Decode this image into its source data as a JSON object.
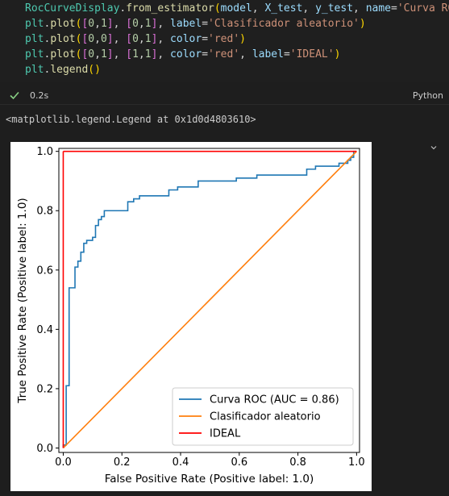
{
  "code": {
    "lines": [
      [
        {
          "t": "RocCurveDisplay",
          "c": "#4ec9b0"
        },
        {
          "t": ".",
          "c": "#d4d4d4"
        },
        {
          "t": "from_estimator",
          "c": "#dcdcaa"
        },
        {
          "t": "(",
          "c": "#ffd700"
        },
        {
          "t": "model",
          "c": "#9cdcfe"
        },
        {
          "t": ", ",
          "c": "#d4d4d4"
        },
        {
          "t": "X_test",
          "c": "#9cdcfe"
        },
        {
          "t": ", ",
          "c": "#d4d4d4"
        },
        {
          "t": "y_test",
          "c": "#9cdcfe"
        },
        {
          "t": ", ",
          "c": "#d4d4d4"
        },
        {
          "t": "name",
          "c": "#9cdcfe"
        },
        {
          "t": "=",
          "c": "#d4d4d4"
        },
        {
          "t": "'Curva ROC'",
          "c": "#ce9178"
        }
      ],
      [
        {
          "t": "plt",
          "c": "#4ec9b0"
        },
        {
          "t": ".",
          "c": "#d4d4d4"
        },
        {
          "t": "plot",
          "c": "#dcdcaa"
        },
        {
          "t": "(",
          "c": "#ffd700"
        },
        {
          "t": "[",
          "c": "#da70d6"
        },
        {
          "t": "0",
          "c": "#b5cea8"
        },
        {
          "t": ",",
          "c": "#d4d4d4"
        },
        {
          "t": "1",
          "c": "#b5cea8"
        },
        {
          "t": "]",
          "c": "#da70d6"
        },
        {
          "t": ", ",
          "c": "#d4d4d4"
        },
        {
          "t": "[",
          "c": "#da70d6"
        },
        {
          "t": "0",
          "c": "#b5cea8"
        },
        {
          "t": ",",
          "c": "#d4d4d4"
        },
        {
          "t": "1",
          "c": "#b5cea8"
        },
        {
          "t": "]",
          "c": "#da70d6"
        },
        {
          "t": ", ",
          "c": "#d4d4d4"
        },
        {
          "t": "label",
          "c": "#9cdcfe"
        },
        {
          "t": "=",
          "c": "#d4d4d4"
        },
        {
          "t": "'Clasificador aleatorio'",
          "c": "#ce9178"
        },
        {
          "t": ")",
          "c": "#ffd700"
        }
      ],
      [
        {
          "t": "plt",
          "c": "#4ec9b0"
        },
        {
          "t": ".",
          "c": "#d4d4d4"
        },
        {
          "t": "plot",
          "c": "#dcdcaa"
        },
        {
          "t": "(",
          "c": "#ffd700"
        },
        {
          "t": "[",
          "c": "#da70d6"
        },
        {
          "t": "0",
          "c": "#b5cea8"
        },
        {
          "t": ",",
          "c": "#d4d4d4"
        },
        {
          "t": "0",
          "c": "#b5cea8"
        },
        {
          "t": "]",
          "c": "#da70d6"
        },
        {
          "t": ", ",
          "c": "#d4d4d4"
        },
        {
          "t": "[",
          "c": "#da70d6"
        },
        {
          "t": "0",
          "c": "#b5cea8"
        },
        {
          "t": ",",
          "c": "#d4d4d4"
        },
        {
          "t": "1",
          "c": "#b5cea8"
        },
        {
          "t": "]",
          "c": "#da70d6"
        },
        {
          "t": ", ",
          "c": "#d4d4d4"
        },
        {
          "t": "color",
          "c": "#9cdcfe"
        },
        {
          "t": "=",
          "c": "#d4d4d4"
        },
        {
          "t": "'red'",
          "c": "#ce9178"
        },
        {
          "t": ")",
          "c": "#ffd700"
        }
      ],
      [
        {
          "t": "plt",
          "c": "#4ec9b0"
        },
        {
          "t": ".",
          "c": "#d4d4d4"
        },
        {
          "t": "plot",
          "c": "#dcdcaa"
        },
        {
          "t": "(",
          "c": "#ffd700"
        },
        {
          "t": "[",
          "c": "#da70d6"
        },
        {
          "t": "0",
          "c": "#b5cea8"
        },
        {
          "t": ",",
          "c": "#d4d4d4"
        },
        {
          "t": "1",
          "c": "#b5cea8"
        },
        {
          "t": "]",
          "c": "#da70d6"
        },
        {
          "t": ", ",
          "c": "#d4d4d4"
        },
        {
          "t": "[",
          "c": "#da70d6"
        },
        {
          "t": "1",
          "c": "#b5cea8"
        },
        {
          "t": ",",
          "c": "#d4d4d4"
        },
        {
          "t": "1",
          "c": "#b5cea8"
        },
        {
          "t": "]",
          "c": "#da70d6"
        },
        {
          "t": ", ",
          "c": "#d4d4d4"
        },
        {
          "t": "color",
          "c": "#9cdcfe"
        },
        {
          "t": "=",
          "c": "#d4d4d4"
        },
        {
          "t": "'red'",
          "c": "#ce9178"
        },
        {
          "t": ", ",
          "c": "#d4d4d4"
        },
        {
          "t": "label",
          "c": "#9cdcfe"
        },
        {
          "t": "=",
          "c": "#d4d4d4"
        },
        {
          "t": "'IDEAL'",
          "c": "#ce9178"
        },
        {
          "t": ")",
          "c": "#ffd700"
        }
      ],
      [
        {
          "t": "plt",
          "c": "#4ec9b0"
        },
        {
          "t": ".",
          "c": "#d4d4d4"
        },
        {
          "t": "legend",
          "c": "#dcdcaa"
        },
        {
          "t": "()",
          "c": "#ffd700"
        }
      ]
    ]
  },
  "cell_status": {
    "check_icon": "check-icon",
    "duration": "0.2s",
    "language": "Python",
    "success_color": "#89d185"
  },
  "output": {
    "text": "<matplotlib.legend.Legend at 0x1d0d4803610>",
    "collapse_icon": "chevron-icon"
  },
  "chart_data": {
    "type": "line",
    "title": "",
    "xlabel": "False Positive Rate (Positive label: 1.0)",
    "ylabel": "True Positive Rate (Positive label: 1.0)",
    "xlim": [
      -0.015,
      1.01
    ],
    "ylim": [
      -0.015,
      1.01
    ],
    "x_ticks": [
      0.0,
      0.2,
      0.4,
      0.6,
      0.8,
      1.0
    ],
    "x_tick_labels": [
      "0.0",
      "0.2",
      "0.4",
      "0.6",
      "0.8",
      "1.0"
    ],
    "y_ticks": [
      0.0,
      0.2,
      0.4,
      0.6,
      0.8,
      1.0
    ],
    "y_tick_labels": [
      "0.0",
      "0.2",
      "0.4",
      "0.6",
      "0.8",
      "1.0"
    ],
    "grid": false,
    "legend_position": "lower right",
    "series": [
      {
        "name": "Curva ROC (AUC = 0.86)",
        "color": "#1f77b4",
        "points": [
          [
            0,
            0
          ],
          [
            0,
            0.01
          ],
          [
            0.01,
            0.01
          ],
          [
            0.01,
            0.21
          ],
          [
            0.02,
            0.21
          ],
          [
            0.02,
            0.54
          ],
          [
            0.04,
            0.54
          ],
          [
            0.04,
            0.61
          ],
          [
            0.05,
            0.61
          ],
          [
            0.05,
            0.63
          ],
          [
            0.06,
            0.63
          ],
          [
            0.06,
            0.66
          ],
          [
            0.07,
            0.66
          ],
          [
            0.07,
            0.69
          ],
          [
            0.08,
            0.69
          ],
          [
            0.08,
            0.7
          ],
          [
            0.1,
            0.7
          ],
          [
            0.1,
            0.71
          ],
          [
            0.11,
            0.71
          ],
          [
            0.11,
            0.75
          ],
          [
            0.12,
            0.75
          ],
          [
            0.12,
            0.77
          ],
          [
            0.13,
            0.77
          ],
          [
            0.13,
            0.78
          ],
          [
            0.14,
            0.78
          ],
          [
            0.14,
            0.8
          ],
          [
            0.22,
            0.8
          ],
          [
            0.22,
            0.83
          ],
          [
            0.24,
            0.83
          ],
          [
            0.24,
            0.84
          ],
          [
            0.26,
            0.84
          ],
          [
            0.26,
            0.85
          ],
          [
            0.36,
            0.85
          ],
          [
            0.36,
            0.87
          ],
          [
            0.39,
            0.87
          ],
          [
            0.39,
            0.88
          ],
          [
            0.46,
            0.88
          ],
          [
            0.46,
            0.9
          ],
          [
            0.59,
            0.9
          ],
          [
            0.59,
            0.91
          ],
          [
            0.66,
            0.91
          ],
          [
            0.66,
            0.92
          ],
          [
            0.83,
            0.92
          ],
          [
            0.83,
            0.94
          ],
          [
            0.86,
            0.94
          ],
          [
            0.86,
            0.95
          ],
          [
            0.94,
            0.95
          ],
          [
            0.94,
            0.96
          ],
          [
            0.97,
            0.96
          ],
          [
            0.97,
            0.97
          ],
          [
            0.98,
            0.97
          ],
          [
            0.98,
            0.98
          ],
          [
            0.99,
            0.98
          ],
          [
            0.99,
            1.0
          ],
          [
            1.0,
            1.0
          ]
        ]
      },
      {
        "name": "Clasificador aleatorio",
        "color": "#ff7f0e",
        "points": [
          [
            0,
            0
          ],
          [
            1,
            1
          ]
        ]
      },
      {
        "name": "",
        "color": "#ff0000",
        "points": [
          [
            0,
            0
          ],
          [
            0,
            1
          ]
        ]
      },
      {
        "name": "IDEAL",
        "color": "#ff0000",
        "points": [
          [
            0,
            1
          ],
          [
            1,
            1
          ]
        ]
      }
    ],
    "legend": [
      {
        "label": "Curva ROC (AUC = 0.86)",
        "color": "#1f77b4"
      },
      {
        "label": "Clasificador aleatorio",
        "color": "#ff7f0e"
      },
      {
        "label": "IDEAL",
        "color": "#ff0000"
      }
    ]
  }
}
